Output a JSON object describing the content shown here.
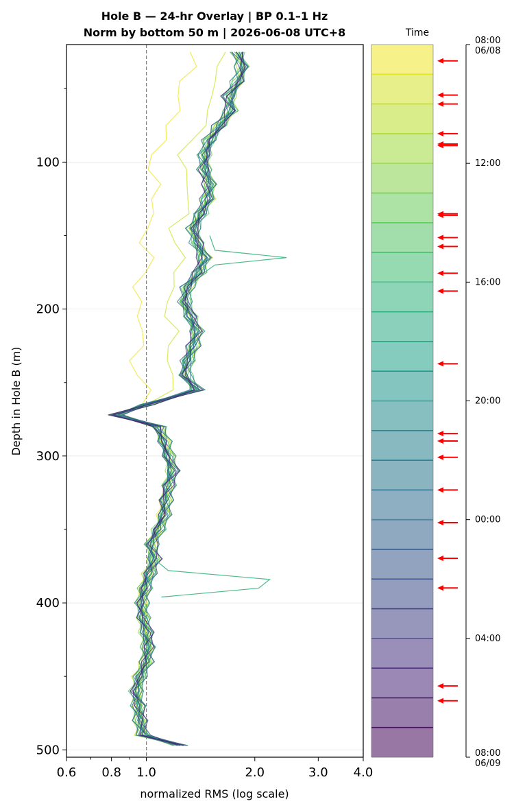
{
  "chart_data": {
    "type": "line",
    "title_line1": "Hole B — 24-hr Overlay  |  BP 0.1–1 Hz",
    "title_line2": "Norm by bottom 50 m  |  2026-06-08 UTC+8",
    "xlabel": "normalized RMS  (log scale)",
    "ylabel": "Depth in Hole B (m)",
    "x_scale": "log",
    "xlim": [
      0.6,
      4.0
    ],
    "ylim": [
      505,
      20
    ],
    "x_ticks": [
      0.6,
      0.8,
      1.0,
      2.0,
      3.0,
      4.0
    ],
    "x_tick_labels": [
      "0.6",
      "0.8",
      "1.0",
      "2.0",
      "3.0",
      "4.0"
    ],
    "y_ticks": [
      100,
      200,
      300,
      400,
      500
    ],
    "y_tick_labels": [
      "100",
      "200",
      "300",
      "400",
      "500"
    ],
    "reference_line_x": 1.0,
    "grid": true,
    "profile_depths": [
      25,
      35,
      45,
      55,
      65,
      75,
      85,
      95,
      105,
      115,
      125,
      135,
      145,
      155,
      165,
      175,
      185,
      195,
      205,
      215,
      225,
      235,
      245,
      255,
      265,
      272,
      280,
      290,
      300,
      310,
      320,
      330,
      340,
      350,
      360,
      370,
      380,
      390,
      400,
      410,
      420,
      430,
      440,
      450,
      460,
      470,
      480,
      490,
      497
    ],
    "profile_rms": [
      1.8,
      1.85,
      1.8,
      1.7,
      1.72,
      1.6,
      1.5,
      1.45,
      1.45,
      1.5,
      1.48,
      1.42,
      1.35,
      1.38,
      1.45,
      1.4,
      1.3,
      1.28,
      1.32,
      1.38,
      1.35,
      1.3,
      1.28,
      1.38,
      1.0,
      0.82,
      1.08,
      1.12,
      1.15,
      1.18,
      1.15,
      1.13,
      1.12,
      1.08,
      1.03,
      1.05,
      1.02,
      0.99,
      0.97,
      0.98,
      1.0,
      1.01,
      1.0,
      0.96,
      0.94,
      0.95,
      0.96,
      0.98,
      1.25
    ],
    "colorbar": {
      "title": "Time",
      "tick_labels": [
        "08:00\n06/08",
        "12:00",
        "16:00",
        "20:00",
        "00:00",
        "04:00",
        "08:00\n06/09"
      ],
      "tick_hours": [
        0,
        4,
        8,
        12,
        16,
        20,
        24
      ]
    },
    "arrow_hours": [
      0.55,
      1.7,
      2.0,
      3.0,
      3.35,
      3.4,
      5.7,
      5.75,
      6.5,
      6.8,
      7.7,
      8.3,
      10.75,
      13.1,
      13.35,
      13.9,
      15.0,
      16.1,
      17.3,
      18.3,
      21.6,
      22.1
    ]
  },
  "colors": {
    "reference_line": "#808080",
    "arrow": "#ff0000",
    "spike_trace": "#4dbb8a",
    "grid": "#e6e6e6"
  }
}
